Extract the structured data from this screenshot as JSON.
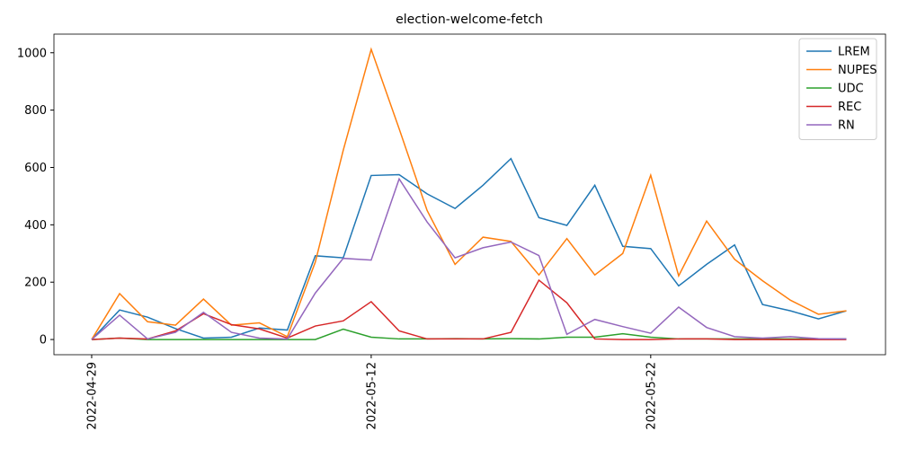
{
  "chart_data": {
    "type": "line",
    "title": "election-welcome-fetch",
    "categories": [
      "2022-04-29",
      null,
      null,
      null,
      null,
      null,
      null,
      null,
      null,
      null,
      "2022-05-12",
      null,
      null,
      null,
      null,
      null,
      null,
      null,
      null,
      null,
      "2022-05-22",
      null,
      null,
      null,
      null,
      null,
      null,
      null
    ],
    "series": [
      {
        "name": "LREM",
        "color": "#1f77b4",
        "values": [
          0,
          103,
          78,
          38,
          5,
          8,
          40,
          33,
          292,
          285,
          572,
          575,
          508,
          457,
          538,
          631,
          425,
          398,
          538,
          325,
          317,
          187,
          262,
          330,
          122,
          100,
          72,
          100
        ]
      },
      {
        "name": "NUPES",
        "color": "#ff7f0e",
        "values": [
          0,
          160,
          62,
          50,
          141,
          50,
          58,
          10,
          270,
          660,
          1012,
          735,
          450,
          262,
          357,
          342,
          225,
          352,
          225,
          300,
          573,
          222,
          413,
          280,
          205,
          137,
          88,
          100
        ]
      },
      {
        "name": "UDC",
        "color": "#2ca02c",
        "values": [
          0,
          5,
          0,
          0,
          0,
          0,
          0,
          0,
          0,
          36,
          8,
          2,
          2,
          3,
          2,
          3,
          2,
          8,
          8,
          20,
          8,
          2,
          2,
          2,
          2,
          2,
          2,
          2
        ]
      },
      {
        "name": "REC",
        "color": "#d62728",
        "values": [
          0,
          5,
          2,
          30,
          90,
          52,
          37,
          5,
          47,
          65,
          132,
          30,
          2,
          2,
          2,
          25,
          207,
          128,
          2,
          0,
          0,
          2,
          2,
          0,
          0,
          0,
          0,
          0
        ]
      },
      {
        "name": "RN",
        "color": "#9467bd",
        "values": [
          0,
          85,
          2,
          25,
          95,
          25,
          5,
          2,
          162,
          283,
          277,
          560,
          410,
          285,
          320,
          340,
          293,
          18,
          70,
          45,
          22,
          113,
          42,
          10,
          5,
          10,
          3,
          2
        ]
      }
    ],
    "ylim": [
      -53,
      1065
    ],
    "yticks": [
      0,
      200,
      400,
      600,
      800,
      1000
    ],
    "legend": "upper right"
  }
}
